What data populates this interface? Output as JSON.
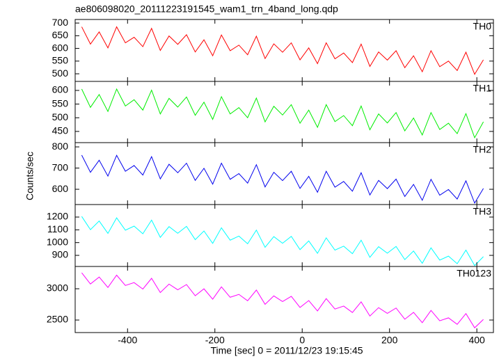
{
  "chart_data": {
    "type": "line",
    "title": "ae806098020_20111223191545_wam1_trn_4band_long.qdp",
    "xlabel": "Time [sec] 0 = 2011/12/23 19:15:45",
    "ylabel": "Counts/sec",
    "xlim": [
      -520,
      438
    ],
    "xticks": [
      -400,
      -200,
      0,
      200,
      400
    ],
    "x": [
      -505,
      -485,
      -465,
      -445,
      -425,
      -405,
      -385,
      -365,
      -345,
      -325,
      -305,
      -285,
      -265,
      -245,
      -225,
      -205,
      -185,
      -165,
      -145,
      -125,
      -105,
      -85,
      -65,
      -45,
      -25,
      -5,
      15,
      35,
      55,
      75,
      95,
      115,
      135,
      155,
      175,
      195,
      215,
      235,
      255,
      275,
      295,
      315,
      335,
      355,
      375,
      395,
      415
    ],
    "series": [
      {
        "name": "TH0",
        "color": "#ff0000",
        "ylim": [
          470,
          714
        ],
        "yticks": [
          500,
          550,
          600,
          650,
          700
        ],
        "values": [
          685,
          617,
          665,
          602,
          685,
          622,
          644,
          607,
          679,
          592,
          649,
          616,
          654,
          586,
          634,
          571,
          653,
          591,
          613,
          575,
          648,
          560,
          618,
          585,
          622,
          555,
          602,
          540,
          622,
          559,
          582,
          544,
          617,
          529,
          586,
          554,
          591,
          524,
          571,
          508,
          591,
          528,
          550,
          513,
          585,
          498,
          555
        ]
      },
      {
        "name": "TH1",
        "color": "#00ee00",
        "ylim": [
          409,
          633
        ],
        "yticks": [
          450,
          500,
          550,
          600
        ],
        "values": [
          605,
          538,
          585,
          523,
          605,
          543,
          566,
          528,
          601,
          514,
          571,
          539,
          576,
          509,
          557,
          494,
          577,
          514,
          537,
          500,
          572,
          485,
          542,
          510,
          548,
          480,
          528,
          465,
          548,
          486,
          508,
          471,
          543,
          456,
          514,
          481,
          519,
          452,
          499,
          437,
          519,
          457,
          480,
          442,
          515,
          427,
          485
        ]
      },
      {
        "name": "TH2",
        "color": "#0000ee",
        "ylim": [
          528,
          820
        ],
        "yticks": [
          600,
          700,
          800
        ],
        "values": [
          761,
          680,
          737,
          662,
          760,
          685,
          712,
          667,
          754,
          649,
          718,
          678,
          723,
          642,
          699,
          624,
          723,
          647,
          674,
          629,
          716,
          611,
          680,
          641,
          685,
          604,
          661,
          586,
          685,
          610,
          637,
          591,
          678,
          573,
          642,
          603,
          648,
          566,
          623,
          548,
          647,
          572,
          599,
          554,
          640,
          535,
          604
        ]
      },
      {
        "name": "TH3",
        "color": "#00ffff",
        "ylim": [
          813,
          1298
        ],
        "yticks": [
          900,
          1000,
          1100,
          1200
        ],
        "values": [
          1205,
          1101,
          1169,
          1072,
          1194,
          1097,
          1129,
          1069,
          1176,
          1041,
          1125,
          1073,
          1127,
          1023,
          1091,
          994,
          1116,
          1019,
          1051,
          991,
          1098,
          963,
          1047,
          995,
          1049,
          945,
          1013,
          916,
          1037,
          941,
          972,
          913,
          1019,
          885,
          968,
          917,
          970,
          867,
          934,
          838,
          959,
          863,
          894,
          835,
          941,
          820,
          890
        ]
      },
      {
        "name": "TH0123",
        "color": "#ff00ff",
        "ylim": [
          2300,
          3356
        ],
        "yticks": [
          2500,
          3000
        ],
        "values": [
          3255,
          3076,
          3187,
          3021,
          3217,
          3052,
          3098,
          2995,
          3167,
          2939,
          3074,
          2983,
          3067,
          2889,
          2999,
          2833,
          3030,
          2864,
          2910,
          2808,
          2979,
          2751,
          2886,
          2795,
          2879,
          2701,
          2811,
          2645,
          2842,
          2676,
          2723,
          2620,
          2791,
          2564,
          2698,
          2607,
          2692,
          2513,
          2623,
          2458,
          2654,
          2488,
          2535,
          2432,
          2603,
          2376,
          2510
        ]
      }
    ]
  }
}
